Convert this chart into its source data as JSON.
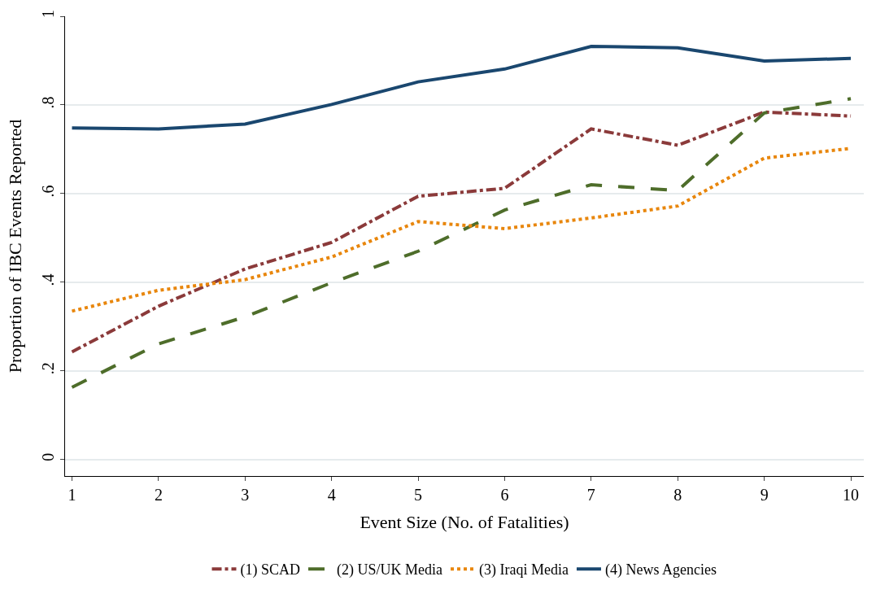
{
  "chart_data": {
    "type": "line",
    "xlabel": "Event Size (No. of Fatalities)",
    "ylabel": "Proportion of IBC Events Reported",
    "x": [
      1,
      2,
      3,
      4,
      5,
      6,
      7,
      8,
      9,
      10
    ],
    "series": [
      {
        "name": "(1) SCAD",
        "color": "#8b3a3a",
        "line_style": "dashdot",
        "values": [
          0.243,
          0.346,
          0.43,
          0.49,
          0.594,
          0.612,
          0.746,
          0.709,
          0.784,
          0.775
        ]
      },
      {
        "name": "(2) US/UK Media",
        "color": "#4e6d2a",
        "line_style": "dashed",
        "values": [
          0.163,
          0.261,
          0.322,
          0.399,
          0.47,
          0.563,
          0.62,
          0.607,
          0.782,
          0.814
        ]
      },
      {
        "name": "(3) Iraqi Media",
        "color": "#e8860c",
        "line_style": "dotted",
        "values": [
          0.335,
          0.382,
          0.406,
          0.457,
          0.537,
          0.521,
          0.545,
          0.572,
          0.68,
          0.702
        ]
      },
      {
        "name": "(4) News Agencies",
        "color": "#1a476f",
        "line_style": "solid",
        "values": [
          0.748,
          0.746,
          0.757,
          0.801,
          0.852,
          0.881,
          0.932,
          0.929,
          0.899,
          0.905
        ]
      }
    ],
    "xlim": [
      0.92,
      10.15
    ],
    "xticks": [
      1,
      2,
      3,
      4,
      5,
      6,
      7,
      8,
      9,
      10
    ],
    "ylim": [
      -0.037,
      1.0
    ],
    "yticks": [
      0,
      {
        "value": 0.2,
        "label": ".2"
      },
      {
        "value": 0.4,
        "label": ".4"
      },
      {
        "value": 0.6,
        "label": ".6"
      },
      {
        "value": 0.8,
        "label": ".8"
      },
      1
    ],
    "grid": "y",
    "legend": "bottom",
    "marker": "none"
  }
}
